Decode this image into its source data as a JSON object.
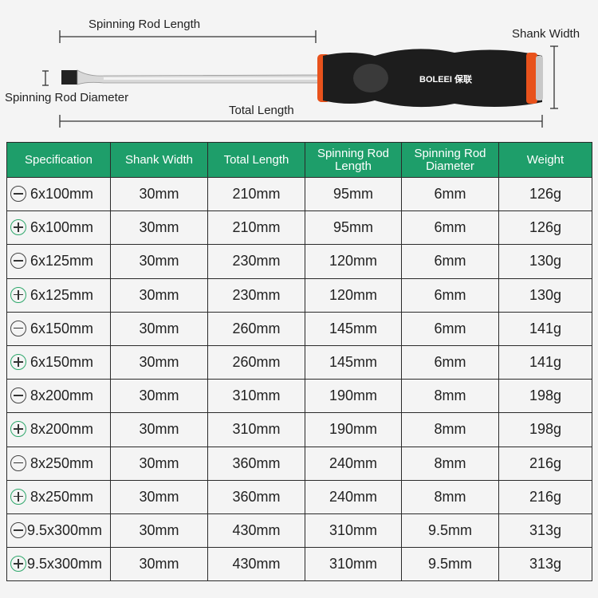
{
  "diagram": {
    "spinning_rod_length": "Spinning Rod Length",
    "shank_width": "Shank Width",
    "spinning_rod_diameter": "Spinning Rod Diameter",
    "total_length": "Total Length",
    "brand": "BOLEEI",
    "brand_cn": "保联",
    "handle_accent": "#e8521c"
  },
  "table": {
    "header_color": "#1e9e6a",
    "headers": [
      "Specification",
      "Shank Width",
      "Total Length",
      "Spinning Rod Length",
      "Spinning Rod Diameter",
      "Weight"
    ],
    "rows": [
      {
        "type": "minus-icon",
        "spec": "6x100mm",
        "shank": "30mm",
        "total": "210mm",
        "rod_len": "95mm",
        "rod_dia": "6mm",
        "weight": "126g"
      },
      {
        "type": "plus-icon",
        "spec": "6x100mm",
        "shank": "30mm",
        "total": "210mm",
        "rod_len": "95mm",
        "rod_dia": "6mm",
        "weight": "126g"
      },
      {
        "type": "minus-icon",
        "spec": "6x125mm",
        "shank": "30mm",
        "total": "230mm",
        "rod_len": "120mm",
        "rod_dia": "6mm",
        "weight": "130g"
      },
      {
        "type": "plus-icon",
        "spec": "6x125mm",
        "shank": "30mm",
        "total": "230mm",
        "rod_len": "120mm",
        "rod_dia": "6mm",
        "weight": "130g"
      },
      {
        "type": "minus-icon",
        "spec": "6x150mm",
        "shank": "30mm",
        "total": "260mm",
        "rod_len": "145mm",
        "rod_dia": "6mm",
        "weight": "141g"
      },
      {
        "type": "plus-icon",
        "spec": "6x150mm",
        "shank": "30mm",
        "total": "260mm",
        "rod_len": "145mm",
        "rod_dia": "6mm",
        "weight": "141g"
      },
      {
        "type": "minus-icon",
        "spec": "8x200mm",
        "shank": "30mm",
        "total": "310mm",
        "rod_len": "190mm",
        "rod_dia": "8mm",
        "weight": "198g"
      },
      {
        "type": "plus-icon",
        "spec": "8x200mm",
        "shank": "30mm",
        "total": "310mm",
        "rod_len": "190mm",
        "rod_dia": "8mm",
        "weight": "198g"
      },
      {
        "type": "minus-icon",
        "spec": "8x250mm",
        "shank": "30mm",
        "total": "360mm",
        "rod_len": "240mm",
        "rod_dia": "8mm",
        "weight": "216g"
      },
      {
        "type": "plus-icon",
        "spec": "8x250mm",
        "shank": "30mm",
        "total": "360mm",
        "rod_len": "240mm",
        "rod_dia": "8mm",
        "weight": "216g"
      },
      {
        "type": "minus-icon",
        "spec": "9.5x300mm",
        "shank": "30mm",
        "total": "430mm",
        "rod_len": "310mm",
        "rod_dia": "9.5mm",
        "weight": "313g"
      },
      {
        "type": "plus-icon",
        "spec": "9.5x300mm",
        "shank": "30mm",
        "total": "430mm",
        "rod_len": "310mm",
        "rod_dia": "9.5mm",
        "weight": "313g"
      }
    ]
  }
}
